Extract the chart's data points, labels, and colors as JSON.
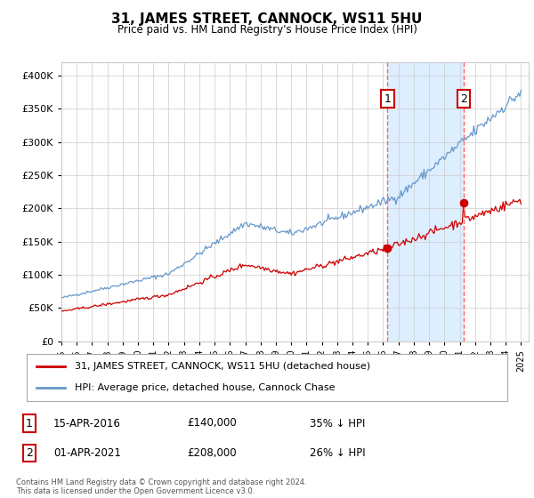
{
  "title": "31, JAMES STREET, CANNOCK, WS11 5HU",
  "subtitle": "Price paid vs. HM Land Registry's House Price Index (HPI)",
  "legend_line1": "31, JAMES STREET, CANNOCK, WS11 5HU (detached house)",
  "legend_line2": "HPI: Average price, detached house, Cannock Chase",
  "annotation1_label": "1",
  "annotation1_date": "15-APR-2016",
  "annotation1_price": "£140,000",
  "annotation1_hpi": "35% ↓ HPI",
  "annotation1_year": 2016.29,
  "annotation1_value": 140000,
  "annotation2_label": "2",
  "annotation2_date": "01-APR-2021",
  "annotation2_price": "£208,000",
  "annotation2_hpi": "26% ↓ HPI",
  "annotation2_year": 2021.25,
  "annotation2_value": 208000,
  "footer": "Contains HM Land Registry data © Crown copyright and database right 2024.\nThis data is licensed under the Open Government Licence v3.0.",
  "red_color": "#cc0000",
  "blue_color": "#6699cc",
  "shade_color": "#ddeeff",
  "grid_color": "#cccccc",
  "dashed_color": "#ff6666",
  "ylim": [
    0,
    420000
  ],
  "start_year": 1995,
  "end_year": 2025
}
